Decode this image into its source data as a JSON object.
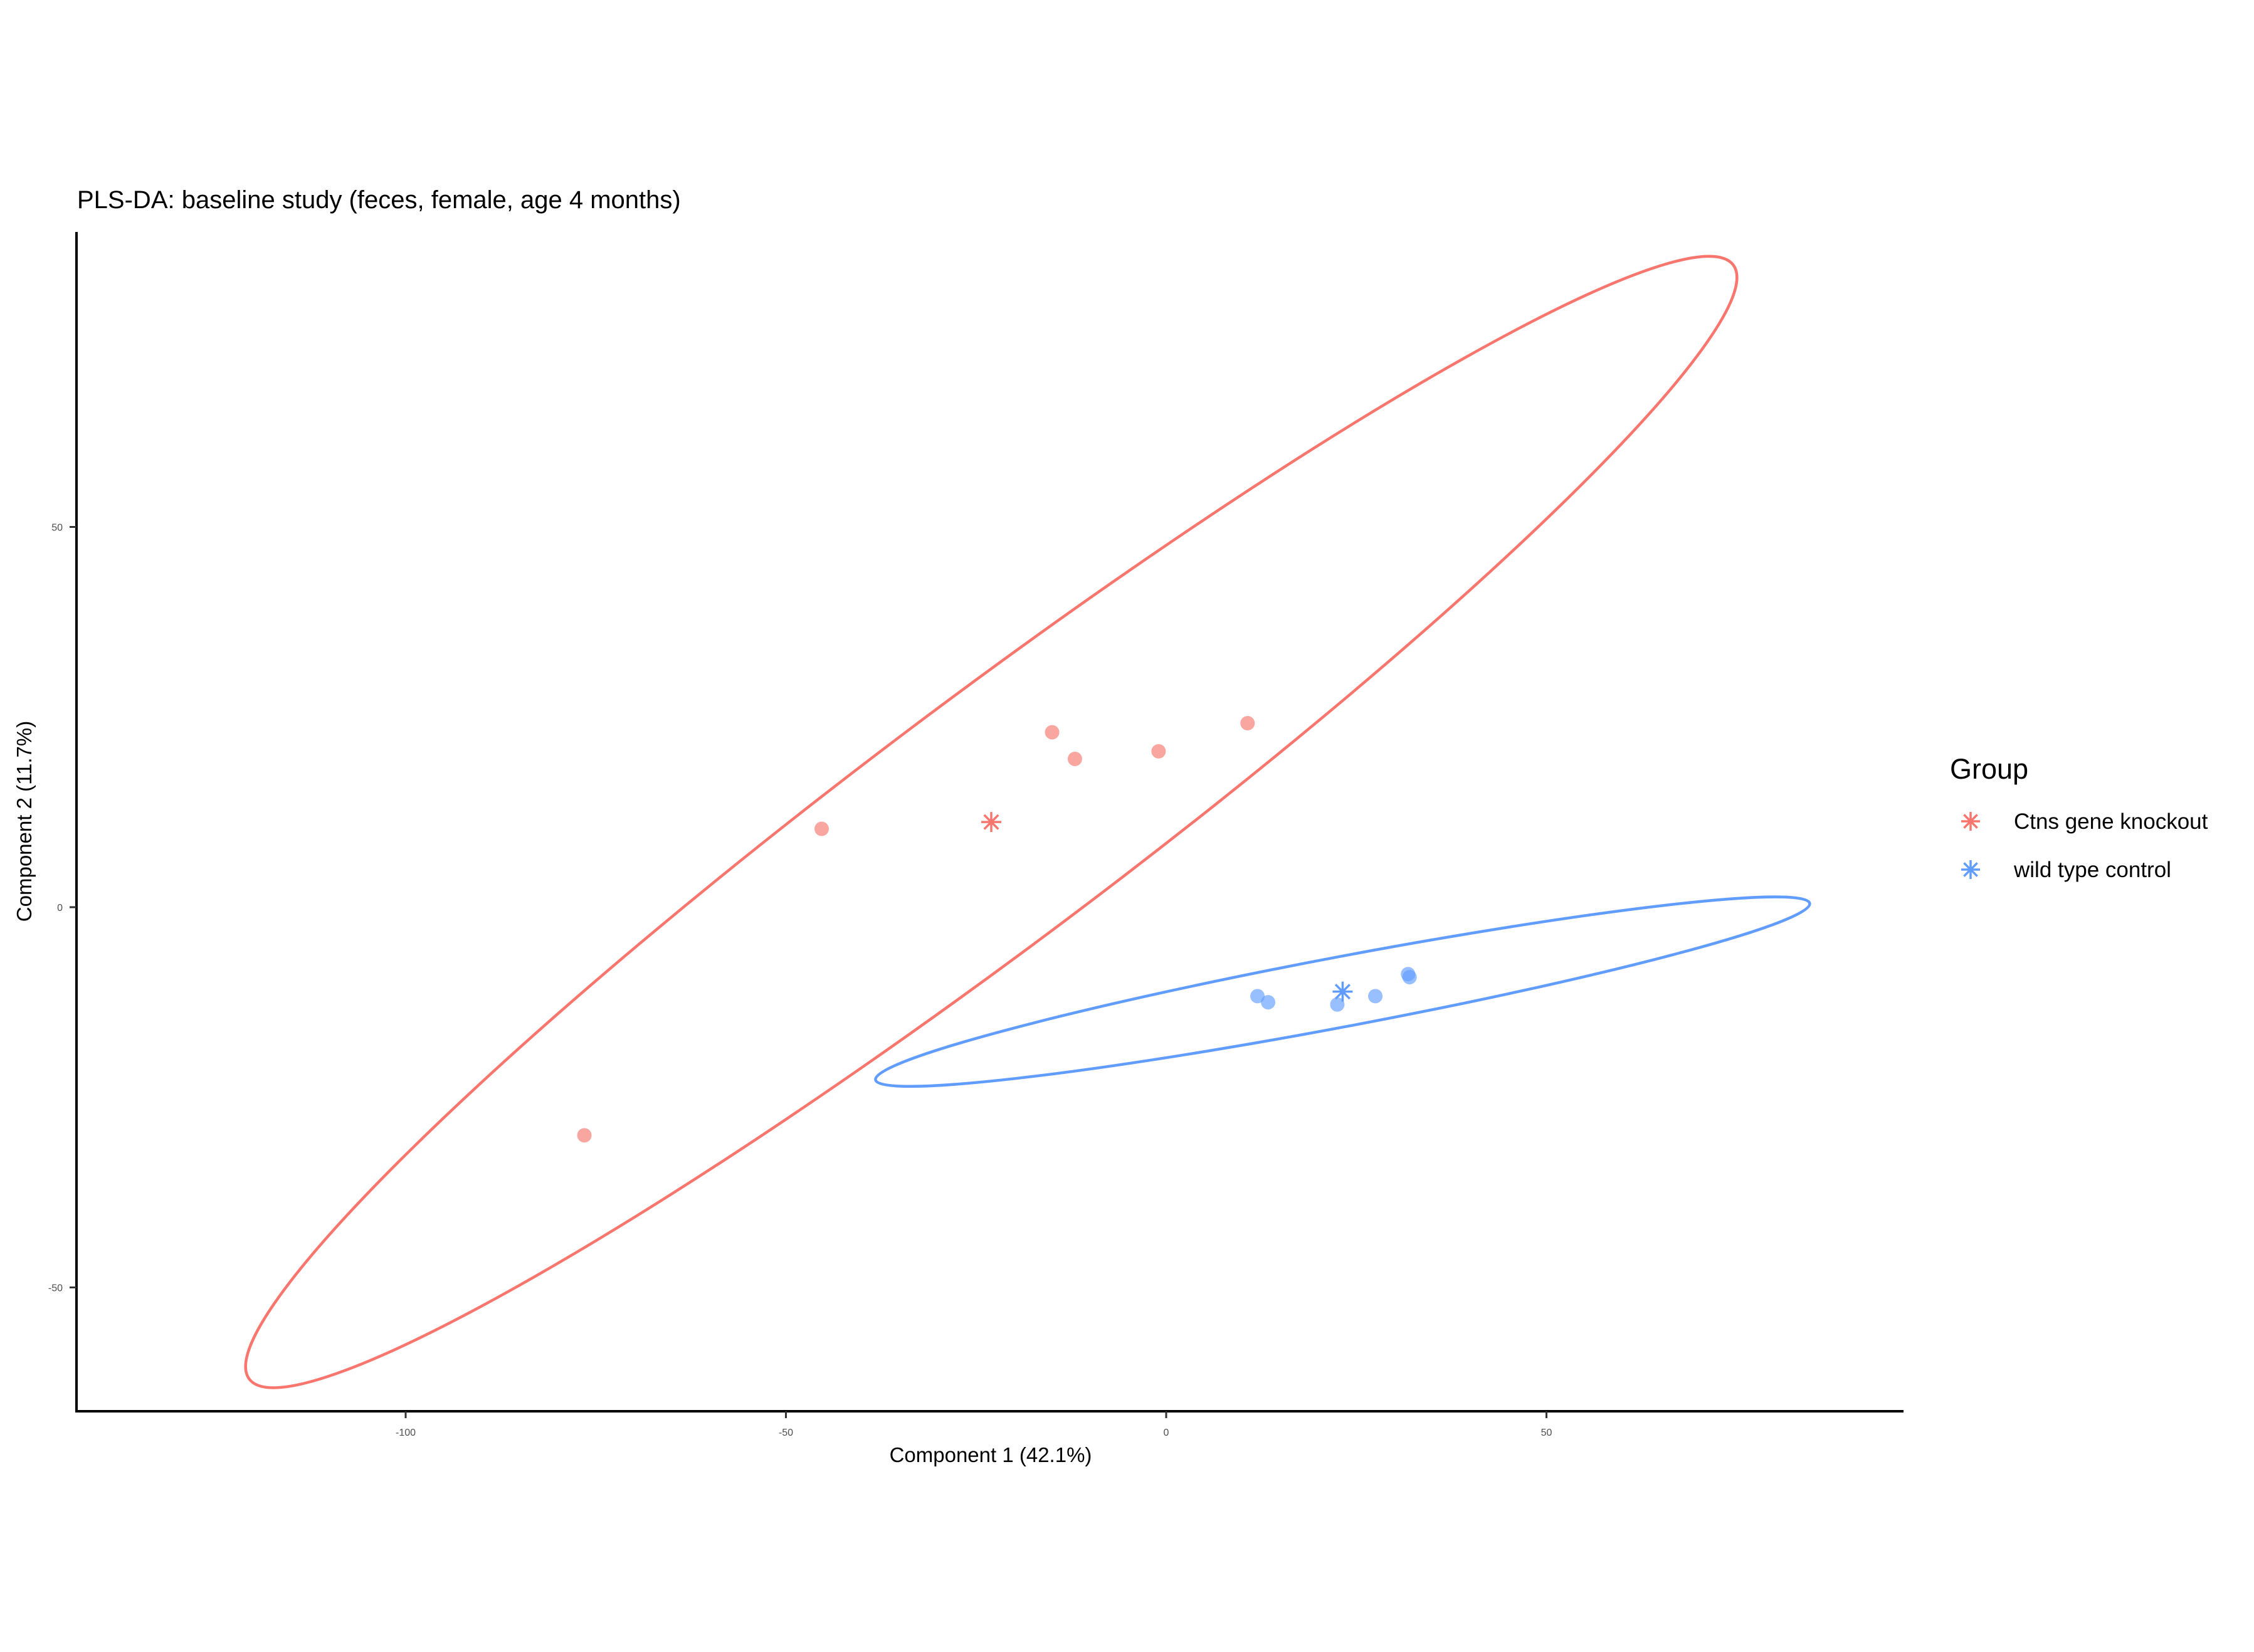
{
  "chart_data": {
    "type": "scatter",
    "title": "PLS-DA: baseline study (feces, female, age 4 months)",
    "xlabel": "Component 1 (42.1%)",
    "ylabel": "Component 2 (11.7%)",
    "xlim": [
      -143,
      97
    ],
    "ylim": [
      -66,
      88
    ],
    "xticks": [
      -100,
      -50,
      0,
      50
    ],
    "xtick_labels": [
      "-100",
      "-50",
      "0",
      "50"
    ],
    "yticks": [
      -50,
      0,
      50
    ],
    "ytick_labels": [
      "-50",
      "0",
      "50"
    ],
    "grid": false,
    "legend": {
      "title": "Group",
      "position": "right"
    },
    "series": [
      {
        "name": "Ctns gene knockout",
        "color": "#F8766D",
        "points": [
          {
            "x": -76.5,
            "y": -30
          },
          {
            "x": -45.3,
            "y": 10.3
          },
          {
            "x": -15,
            "y": 23
          },
          {
            "x": -12,
            "y": 19.5
          },
          {
            "x": -1,
            "y": 20.5
          },
          {
            "x": 10.7,
            "y": 24.2
          }
        ],
        "centroid": {
          "x": -23,
          "y": 11.2
        },
        "ellipse": {
          "cx": -23,
          "cy": 11.2,
          "a": 122,
          "b": 16.2,
          "angle_deg": 36.9
        }
      },
      {
        "name": "wild type control",
        "color": "#619CFF",
        "points": [
          {
            "x": 12,
            "y": -11.7
          },
          {
            "x": 13.4,
            "y": -12.5
          },
          {
            "x": 22.5,
            "y": -12.8
          },
          {
            "x": 27.5,
            "y": -11.7
          },
          {
            "x": 31.8,
            "y": -8.8
          },
          {
            "x": 32,
            "y": -9.2
          }
        ],
        "centroid": {
          "x": 23.2,
          "y": -11.1
        },
        "ellipse": {
          "cx": 23.2,
          "cy": -11.1,
          "a": 62.5,
          "b": 4.6,
          "angle_deg": 10.7
        }
      }
    ]
  }
}
